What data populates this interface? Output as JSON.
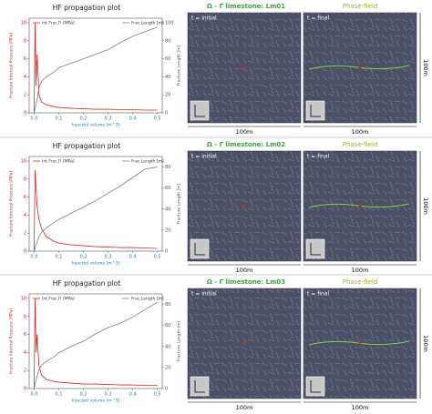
{
  "chart_data": [
    {
      "type": "line",
      "title": "HF propagation plot",
      "xlabel": "Injected volume [m^3]",
      "ylabel": "Fracture Internal Pressure [MPa]",
      "y2label": "Fracture Length [m]",
      "x": [
        0,
        0.004,
        0.008,
        0.012,
        0.02,
        0.03,
        0.05,
        0.08,
        0.1,
        0.15,
        0.2,
        0.25,
        0.3,
        0.35,
        0.4,
        0.45,
        0.5
      ],
      "series": [
        {
          "name": "Int.Frac.P. [MPa]",
          "color": "#d62728",
          "values": [
            0,
            10,
            3,
            6.5,
            2,
            1.2,
            0.9,
            0.7,
            0.6,
            0.5,
            0.45,
            0.4,
            0.4,
            0.35,
            0.35,
            0.3,
            0.3
          ]
        },
        {
          "name": "Frac.Length [m]",
          "color": "#7f7f7f",
          "axis": "y2",
          "values": [
            0,
            5,
            10,
            15,
            28,
            35,
            40,
            45,
            50,
            55,
            60,
            65,
            70,
            78,
            85,
            90,
            95
          ]
        }
      ],
      "xlim": [
        -0.02,
        0.52
      ],
      "xticks": [
        {
          "value": 0,
          "label": "0.0"
        },
        0.1,
        0.2,
        0.3,
        0.4,
        0.5
      ],
      "ylim": [
        0,
        10.5
      ],
      "yticks": [
        0,
        2,
        4,
        6,
        8,
        10
      ],
      "y2lim": [
        0,
        105
      ],
      "y2ticks": [
        0,
        20,
        40,
        60,
        80,
        100
      ]
    },
    {
      "type": "line",
      "title": "HF propagation plot",
      "xlabel": "Injected volume [m^3]",
      "ylabel": "Fracture Internal Pressure [MPa]",
      "y2label": "Fracture Length [m]",
      "x": [
        0,
        0.004,
        0.008,
        0.012,
        0.02,
        0.03,
        0.05,
        0.08,
        0.1,
        0.15,
        0.2,
        0.25,
        0.3,
        0.35,
        0.4,
        0.45,
        0.5
      ],
      "series": [
        {
          "name": "Int.Frac.P. [MPa]",
          "color": "#d62728",
          "values": [
            0,
            9,
            7,
            5,
            3.5,
            2.5,
            1.6,
            1.1,
            0.9,
            0.7,
            0.6,
            0.5,
            0.45,
            0.4,
            0.4,
            0.35,
            0.3
          ]
        },
        {
          "name": "Frac.Length [m]",
          "color": "#7f7f7f",
          "axis": "y2",
          "values": [
            0,
            3,
            6,
            9,
            14,
            18,
            22,
            27,
            30,
            36,
            42,
            48,
            55,
            62,
            70,
            78,
            80
          ]
        }
      ],
      "xlim": [
        -0.02,
        0.52
      ],
      "xticks": [
        {
          "value": 0,
          "label": "0.0"
        },
        0.1,
        0.2,
        0.3,
        0.4,
        0.5
      ],
      "ylim": [
        0,
        10.5
      ],
      "yticks": [
        0,
        2,
        4,
        6,
        8,
        10
      ],
      "y2lim": [
        0,
        90
      ],
      "y2ticks": [
        0,
        20,
        40,
        60,
        80
      ]
    },
    {
      "type": "line",
      "title": "HF propagation plot",
      "xlabel": "Injected volume [m^3]",
      "ylabel": "Fracture Internal Pressure [MPa]",
      "y2label": "Fracture Length [m]",
      "x": [
        0,
        0.004,
        0.008,
        0.012,
        0.02,
        0.03,
        0.05,
        0.08,
        0.1,
        0.15,
        0.2,
        0.25,
        0.3,
        0.35,
        0.4,
        0.45,
        0.5
      ],
      "series": [
        {
          "name": "Int.Frac.P. [MPa]",
          "color": "#d62728",
          "values": [
            0,
            10,
            4,
            6,
            2.5,
            1.5,
            1,
            0.8,
            0.7,
            0.6,
            0.5,
            0.5,
            0.45,
            0.4,
            0.4,
            0.35,
            0.35
          ]
        },
        {
          "name": "Frac.Length [m]",
          "color": "#7f7f7f",
          "axis": "y2",
          "values": [
            0,
            4,
            8,
            12,
            18,
            22,
            26,
            30,
            34,
            40,
            45,
            52,
            58,
            62,
            68,
            75,
            82
          ]
        }
      ],
      "xlim": [
        -0.02,
        0.52
      ],
      "xticks": [
        {
          "value": 0,
          "label": "0.0"
        },
        0.1,
        0.2,
        0.3,
        0.4,
        0.5
      ],
      "ylim": [
        0,
        10.5
      ],
      "yticks": [
        0,
        2,
        4,
        6,
        8,
        10
      ],
      "y2lim": [
        0,
        90
      ],
      "y2ticks": [
        0,
        20,
        40,
        60,
        80
      ]
    }
  ],
  "panels": [
    {
      "title": "Ω - Γ limestone: Lm01",
      "initial_label": "t = initial",
      "final_label": "t = final",
      "field_label": "Phase-field",
      "width_label": "100m",
      "height_label": "100m"
    },
    {
      "title": "Ω - Γ limestone: Lm02",
      "initial_label": "t = initial",
      "final_label": "t = final",
      "field_label": "Phase-field",
      "width_label": "100m",
      "height_label": "100m"
    },
    {
      "title": "Ω - Γ limestone: Lm03",
      "initial_label": "t = initial",
      "final_label": "t = final",
      "field_label": "Phase-field",
      "width_label": "100m",
      "height_label": "100m"
    }
  ]
}
